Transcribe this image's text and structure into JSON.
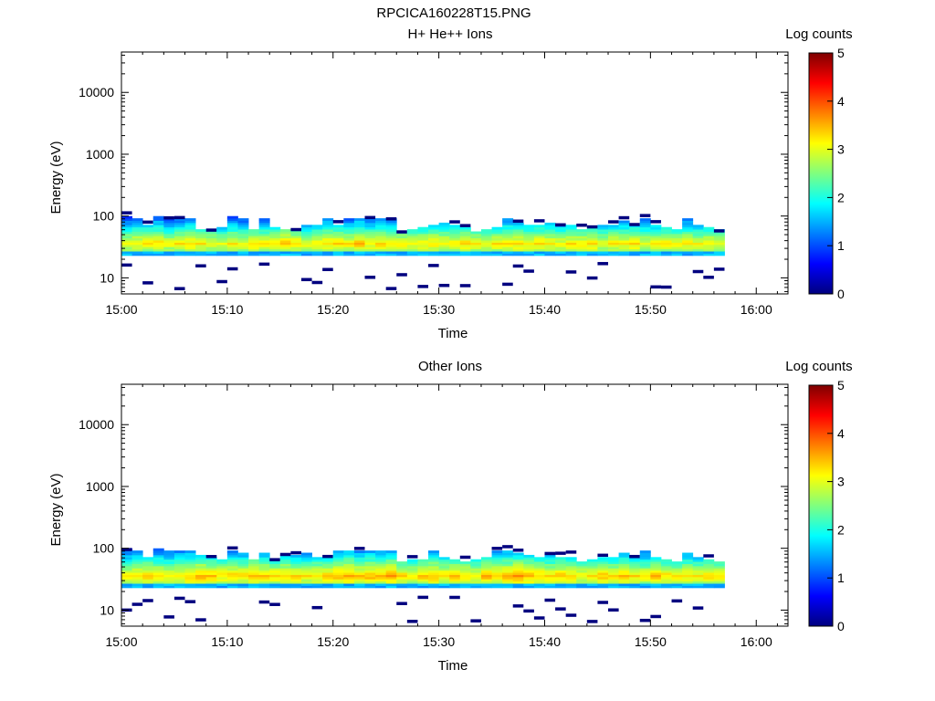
{
  "page_title": "RPCICA160228T15.PNG",
  "colormap": [
    "#00007f",
    "#0000ff",
    "#007fff",
    "#00ffff",
    "#7fff7f",
    "#ffff00",
    "#ff7f00",
    "#ff0000",
    "#7f0000"
  ],
  "chart_data": [
    {
      "type": "heatmap",
      "title": "H+ He++ Ions",
      "xlabel": "Time",
      "ylabel": "Energy (eV)",
      "x_ticks": [
        "15:00",
        "15:10",
        "15:20",
        "15:30",
        "15:40",
        "15:50",
        "16:00"
      ],
      "y_ticks": [
        "10",
        "100",
        "1000",
        "10000"
      ],
      "y_scale": "log",
      "ylim": [
        5.5,
        45000
      ],
      "xlim_minutes": [
        0,
        63
      ],
      "colorbar": {
        "label": "Log counts",
        "ticks": [
          "0",
          "1",
          "2",
          "3",
          "4",
          "5"
        ],
        "range": [
          0,
          5
        ]
      },
      "spectra": {
        "time_start_minutes": 0,
        "time_step_minutes": 1,
        "count": 57,
        "core_peak_log_counts": [
          3.1,
          3.2,
          3.2,
          3.3,
          3.1,
          3.2,
          3.3,
          3.2,
          3.1,
          3.0,
          3.2,
          3.1,
          3.3,
          3.2,
          3.3,
          3.4,
          3.3,
          3.1,
          3.2,
          3.3,
          3.3,
          3.2,
          3.4,
          3.2,
          3.3,
          3.3,
          3.2,
          3.1,
          3.2,
          3.3,
          3.2,
          3.2,
          3.3,
          3.2,
          3.1,
          3.2,
          3.3,
          3.3,
          3.2,
          3.3,
          3.2,
          3.1,
          3.2,
          3.2,
          3.3,
          3.1,
          3.2,
          3.2,
          3.3,
          3.1,
          3.2,
          3.2,
          3.1,
          3.2,
          3.1,
          3.2,
          3.1
        ],
        "upper_energy_eV": [
          95,
          92,
          70,
          95,
          92,
          90,
          90,
          60,
          58,
          62,
          95,
          90,
          60,
          85,
          62,
          60,
          60,
          68,
          68,
          88,
          72,
          90,
          92,
          90,
          88,
          90,
          55,
          60,
          62,
          72,
          78,
          70,
          62,
          55,
          60,
          65,
          90,
          78,
          68,
          72,
          78,
          70,
          72,
          60,
          62,
          72,
          68,
          80,
          72,
          90,
          70,
          62,
          60,
          88,
          70,
          62,
          58
        ]
      }
    },
    {
      "type": "heatmap",
      "title": "Other Ions",
      "xlabel": "Time",
      "ylabel": "Energy (eV)",
      "x_ticks": [
        "15:00",
        "15:10",
        "15:20",
        "15:30",
        "15:40",
        "15:50",
        "16:00"
      ],
      "y_ticks": [
        "10",
        "100",
        "1000",
        "10000"
      ],
      "y_scale": "log",
      "ylim": [
        5.5,
        45000
      ],
      "xlim_minutes": [
        0,
        63
      ],
      "colorbar": {
        "label": "Log counts",
        "ticks": [
          "0",
          "1",
          "2",
          "3",
          "4",
          "5"
        ],
        "range": [
          0,
          5
        ]
      },
      "spectra": {
        "time_start_minutes": 0,
        "time_step_minutes": 1,
        "count": 57,
        "core_peak_log_counts": [
          3.2,
          3.3,
          3.4,
          3.3,
          3.2,
          3.3,
          3.4,
          3.5,
          3.4,
          3.3,
          3.4,
          3.3,
          3.5,
          3.4,
          3.3,
          3.4,
          3.3,
          3.2,
          3.3,
          3.4,
          3.5,
          3.6,
          3.4,
          3.5,
          3.4,
          3.6,
          3.3,
          3.2,
          3.4,
          3.5,
          3.3,
          3.4,
          3.3,
          3.2,
          3.5,
          3.4,
          3.5,
          3.6,
          3.5,
          3.4,
          3.3,
          3.4,
          3.3,
          3.2,
          3.3,
          3.4,
          3.3,
          3.4,
          3.3,
          3.2,
          3.5,
          3.3,
          3.2,
          3.3,
          3.2,
          3.3,
          3.2
        ],
        "upper_energy_eV": [
          95,
          92,
          70,
          95,
          92,
          90,
          90,
          75,
          72,
          62,
          90,
          82,
          62,
          80,
          62,
          78,
          78,
          80,
          68,
          72,
          88,
          92,
          90,
          90,
          88,
          90,
          60,
          62,
          62,
          90,
          70,
          62,
          60,
          62,
          70,
          90,
          88,
          80,
          78,
          72,
          80,
          70,
          72,
          60,
          62,
          72,
          68,
          80,
          72,
          90,
          70,
          62,
          60,
          80,
          70,
          62,
          58
        ]
      }
    }
  ]
}
